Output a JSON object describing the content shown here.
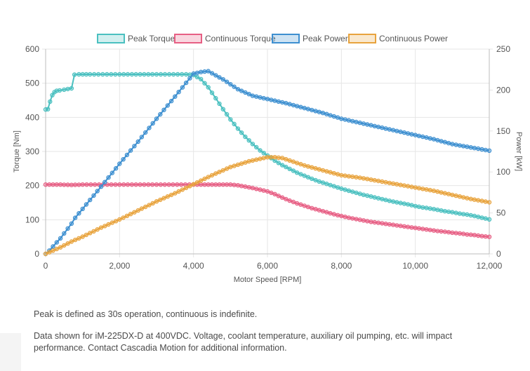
{
  "chart_data": {
    "type": "line",
    "xlabel": "Motor Speed [RPM]",
    "ylabel_left": "Torque [Nm]",
    "ylabel_right": "Power [kW]",
    "xlim": [
      0,
      12000
    ],
    "ylim_left": [
      0,
      600
    ],
    "ylim_right": [
      0,
      250
    ],
    "x_ticks": [
      "0",
      "2,000",
      "4,000",
      "6,000",
      "8,000",
      "10,000",
      "12,000"
    ],
    "y_left_ticks": [
      "0",
      "100",
      "200",
      "300",
      "400",
      "500",
      "600"
    ],
    "y_right_ticks": [
      "0",
      "50",
      "100",
      "150",
      "200",
      "250"
    ],
    "grid": true,
    "legend_position": "top",
    "series": [
      {
        "name": "Peak Torque",
        "axis": "left",
        "color": "#4bc0c0",
        "points": [
          [
            0,
            423
          ],
          [
            60,
            424
          ],
          [
            120,
            446
          ],
          [
            180,
            465
          ],
          [
            240,
            474
          ],
          [
            300,
            478
          ],
          [
            380,
            479
          ],
          [
            500,
            481
          ],
          [
            700,
            485
          ],
          [
            780,
            525
          ],
          [
            900,
            526
          ],
          [
            1200,
            526
          ],
          [
            2000,
            526
          ],
          [
            3000,
            526
          ],
          [
            3800,
            526
          ],
          [
            4000,
            524
          ],
          [
            4200,
            512
          ],
          [
            4400,
            488
          ],
          [
            4600,
            456
          ],
          [
            4800,
            424
          ],
          [
            5000,
            394
          ],
          [
            5200,
            367
          ],
          [
            5400,
            343
          ],
          [
            5600,
            322
          ],
          [
            5800,
            303
          ],
          [
            6000,
            288
          ],
          [
            6200,
            273
          ],
          [
            6400,
            260
          ],
          [
            6600,
            249
          ],
          [
            6800,
            238
          ],
          [
            7000,
            229
          ],
          [
            7200,
            220
          ],
          [
            7400,
            212
          ],
          [
            7600,
            205
          ],
          [
            7800,
            198
          ],
          [
            8000,
            191
          ],
          [
            8200,
            185
          ],
          [
            8400,
            179
          ],
          [
            8600,
            173
          ],
          [
            8800,
            168
          ],
          [
            9000,
            163
          ],
          [
            9200,
            158
          ],
          [
            9400,
            153
          ],
          [
            9600,
            149
          ],
          [
            9800,
            145
          ],
          [
            10000,
            140
          ],
          [
            10200,
            136
          ],
          [
            10400,
            133
          ],
          [
            10600,
            129
          ],
          [
            10800,
            125
          ],
          [
            11000,
            122
          ],
          [
            11200,
            118
          ],
          [
            11400,
            115
          ],
          [
            11600,
            111
          ],
          [
            11800,
            106
          ],
          [
            12000,
            101
          ]
        ]
      },
      {
        "name": "Continuous Torque",
        "axis": "left",
        "color": "#e75f84",
        "points": [
          [
            0,
            203
          ],
          [
            200,
            203
          ],
          [
            400,
            203
          ],
          [
            700,
            202
          ],
          [
            1000,
            203
          ],
          [
            2000,
            203
          ],
          [
            3000,
            203
          ],
          [
            4000,
            203
          ],
          [
            4500,
            203
          ],
          [
            5000,
            203
          ],
          [
            5200,
            201
          ],
          [
            5400,
            197
          ],
          [
            5600,
            193
          ],
          [
            5800,
            188
          ],
          [
            6000,
            183
          ],
          [
            6200,
            175
          ],
          [
            6400,
            165
          ],
          [
            6600,
            156
          ],
          [
            6800,
            148
          ],
          [
            7000,
            141
          ],
          [
            7200,
            134
          ],
          [
            7400,
            128
          ],
          [
            7600,
            122
          ],
          [
            7800,
            116
          ],
          [
            8000,
            111
          ],
          [
            8200,
            106
          ],
          [
            8400,
            102
          ],
          [
            8600,
            98
          ],
          [
            8800,
            94
          ],
          [
            9000,
            91
          ],
          [
            9200,
            88
          ],
          [
            9400,
            85
          ],
          [
            9600,
            82
          ],
          [
            9800,
            79
          ],
          [
            10000,
            76
          ],
          [
            10200,
            73
          ],
          [
            10400,
            70
          ],
          [
            10600,
            67
          ],
          [
            10800,
            65
          ],
          [
            11000,
            62
          ],
          [
            11200,
            60
          ],
          [
            11400,
            57
          ],
          [
            11600,
            55
          ],
          [
            11800,
            52
          ],
          [
            12000,
            50
          ]
        ]
      },
      {
        "name": "Peak Power",
        "axis": "right",
        "color": "#3d8fd0",
        "points": [
          [
            0,
            0
          ],
          [
            100,
            4
          ],
          [
            200,
            9
          ],
          [
            300,
            14
          ],
          [
            400,
            19
          ],
          [
            700,
            37
          ],
          [
            800,
            44
          ],
          [
            1000,
            55
          ],
          [
            1500,
            82
          ],
          [
            2000,
            110
          ],
          [
            2500,
            137
          ],
          [
            3000,
            165
          ],
          [
            3500,
            192
          ],
          [
            4000,
            220
          ],
          [
            4200,
            222
          ],
          [
            4400,
            223
          ],
          [
            4600,
            218
          ],
          [
            4800,
            213
          ],
          [
            5000,
            207
          ],
          [
            5200,
            201
          ],
          [
            5400,
            197
          ],
          [
            5600,
            193
          ],
          [
            5800,
            191
          ],
          [
            6000,
            189
          ],
          [
            6500,
            184
          ],
          [
            7000,
            178
          ],
          [
            7500,
            172
          ],
          [
            8000,
            165
          ],
          [
            8500,
            160
          ],
          [
            9000,
            155
          ],
          [
            9500,
            150
          ],
          [
            10000,
            145
          ],
          [
            10500,
            140
          ],
          [
            11000,
            134
          ],
          [
            11500,
            130
          ],
          [
            12000,
            126
          ]
        ]
      },
      {
        "name": "Continuous Power",
        "axis": "right",
        "color": "#e8a33d",
        "points": [
          [
            0,
            0
          ],
          [
            100,
            2
          ],
          [
            200,
            4
          ],
          [
            300,
            6
          ],
          [
            400,
            8
          ],
          [
            700,
            15
          ],
          [
            1000,
            21
          ],
          [
            1500,
            32
          ],
          [
            2000,
            42
          ],
          [
            2500,
            53
          ],
          [
            3000,
            64
          ],
          [
            3500,
            74
          ],
          [
            4000,
            85
          ],
          [
            4500,
            96
          ],
          [
            5000,
            106
          ],
          [
            5500,
            113
          ],
          [
            6000,
            118
          ],
          [
            6200,
            118
          ],
          [
            6400,
            117
          ],
          [
            6600,
            114
          ],
          [
            6800,
            111
          ],
          [
            7000,
            108
          ],
          [
            7500,
            102
          ],
          [
            8000,
            96
          ],
          [
            8500,
            93
          ],
          [
            9000,
            89
          ],
          [
            9500,
            85
          ],
          [
            10000,
            81
          ],
          [
            10500,
            77
          ],
          [
            11000,
            72
          ],
          [
            11500,
            67
          ],
          [
            12000,
            63
          ]
        ]
      }
    ]
  },
  "notes": {
    "line1": "Peak is defined as 30s operation, continuous is indefinite.",
    "line2": "Data shown for iM-225DX-D at 400VDC. Voltage, coolant temperature, auxiliary oil pumping, etc. will impact performance. Contact Cascadia Motion for additional information."
  }
}
